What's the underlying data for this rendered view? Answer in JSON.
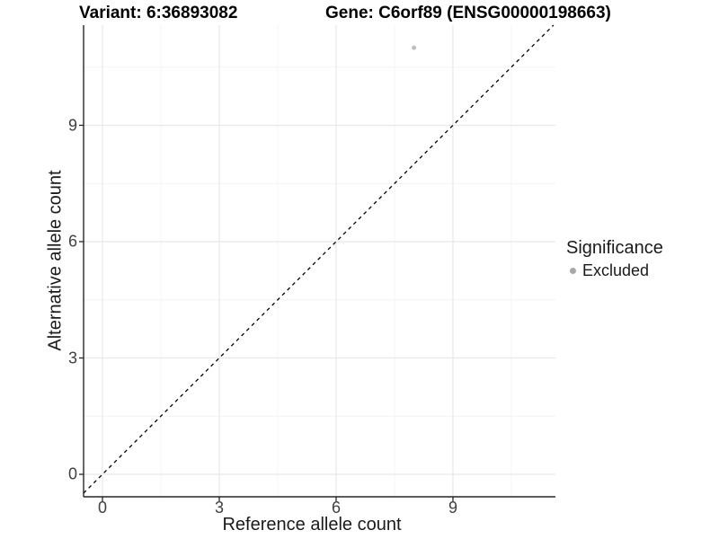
{
  "titles": {
    "variant": "Variant: 6:36893082",
    "gene": "Gene: C6orf89 (ENSG00000198663)"
  },
  "axis": {
    "x_label": "Reference allele count",
    "y_label": "Alternative allele count",
    "x_tick_labels": [
      "0",
      "3",
      "6",
      "9"
    ],
    "y_tick_labels": [
      "0",
      "3",
      "6",
      "9"
    ]
  },
  "legend": {
    "title": "Significance",
    "entries": [
      {
        "label": "Excluded",
        "marker": "circle",
        "color": "#a8a8a8"
      }
    ]
  },
  "chart_data": {
    "type": "scatter",
    "title_left": "Variant: 6:36893082",
    "title_right": "Gene: C6orf89 (ENSG00000198663)",
    "xlabel": "Reference allele count",
    "ylabel": "Alternative allele count",
    "x_ticks": [
      0,
      3,
      6,
      9
    ],
    "y_ticks": [
      0,
      3,
      6,
      9
    ],
    "x_minor": [
      1.5,
      4.5,
      7.5,
      10.5
    ],
    "y_minor": [
      1.5,
      4.5,
      7.5,
      10.5
    ],
    "xlim": [
      -0.5,
      11.65
    ],
    "ylim": [
      -0.6,
      11.6
    ],
    "grid": "major and minor gridlines, light gray, white panel",
    "points": [
      {
        "x": 8,
        "y": 11,
        "series": "Excluded"
      }
    ],
    "identity_line": {
      "slope": 1,
      "intercept": 0,
      "style": "dashed",
      "color": "#000000"
    },
    "legend_position": "right",
    "colors": {
      "point": "#bfbfbf",
      "legend_point": "#a8a8a8",
      "axis": "#262626",
      "grid_major": "#e8e8e8",
      "grid_minor": "#f4f4f4",
      "identity_line": "#000000"
    }
  }
}
